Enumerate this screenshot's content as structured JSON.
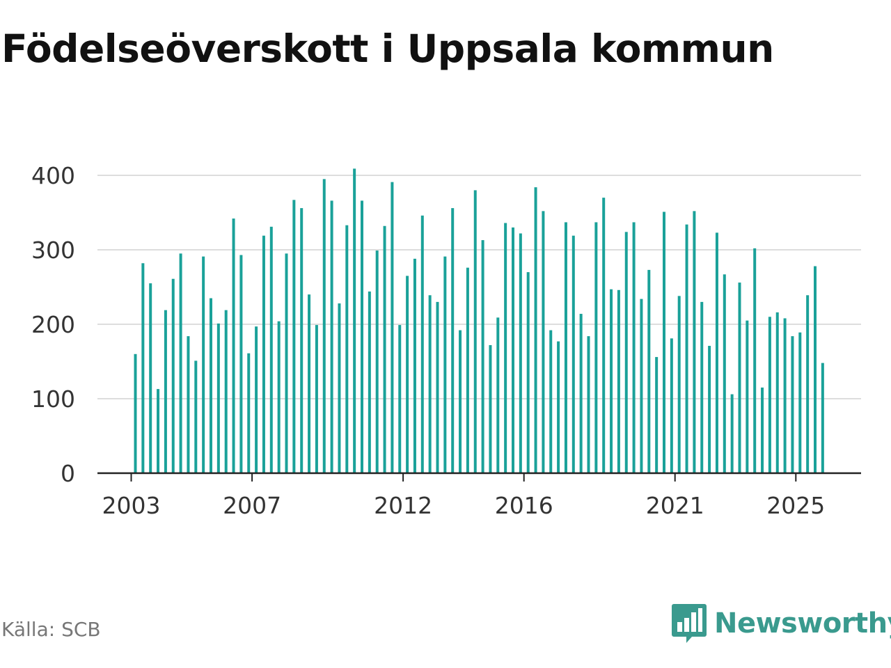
{
  "title": "Födelseöverskott i Uppsala kommun",
  "source": "Källa: SCB",
  "brand": "Newsworthy",
  "colors": {
    "bar": "#1aa199",
    "grid": "#dddddd",
    "axis": "#222222",
    "text": "#333333",
    "brand": "#3a9a8e"
  },
  "chart_data": {
    "type": "bar",
    "title": "Födelseöverskott i Uppsala kommun",
    "xlabel": "",
    "ylabel": "",
    "ylim": [
      0,
      420
    ],
    "yticks": [
      0,
      100,
      200,
      300,
      400
    ],
    "grid": true,
    "xtick_labels": [
      {
        "label": "2003",
        "index": 0
      },
      {
        "label": "2007",
        "index": 16
      },
      {
        "label": "2012",
        "index": 36
      },
      {
        "label": "2016",
        "index": 52
      },
      {
        "label": "2021",
        "index": 72
      },
      {
        "label": "2025",
        "index": 88
      }
    ],
    "values": [
      160,
      282,
      255,
      113,
      219,
      261,
      295,
      184,
      151,
      291,
      235,
      201,
      219,
      342,
      293,
      161,
      197,
      319,
      331,
      204,
      295,
      367,
      356,
      240,
      199,
      395,
      366,
      228,
      333,
      409,
      366,
      244,
      299,
      332,
      391,
      199,
      265,
      288,
      346,
      239,
      230,
      291,
      356,
      192,
      276,
      380,
      313,
      172,
      209,
      336,
      330,
      322,
      270,
      384,
      352,
      192,
      177,
      337,
      319,
      214,
      184,
      337,
      370,
      247,
      246,
      324,
      337,
      234,
      273,
      156,
      351,
      181,
      238,
      334,
      352,
      230,
      171,
      323,
      267,
      106,
      256,
      205,
      302,
      115,
      210,
      216,
      208,
      184,
      189,
      239,
      278,
      148
    ]
  }
}
